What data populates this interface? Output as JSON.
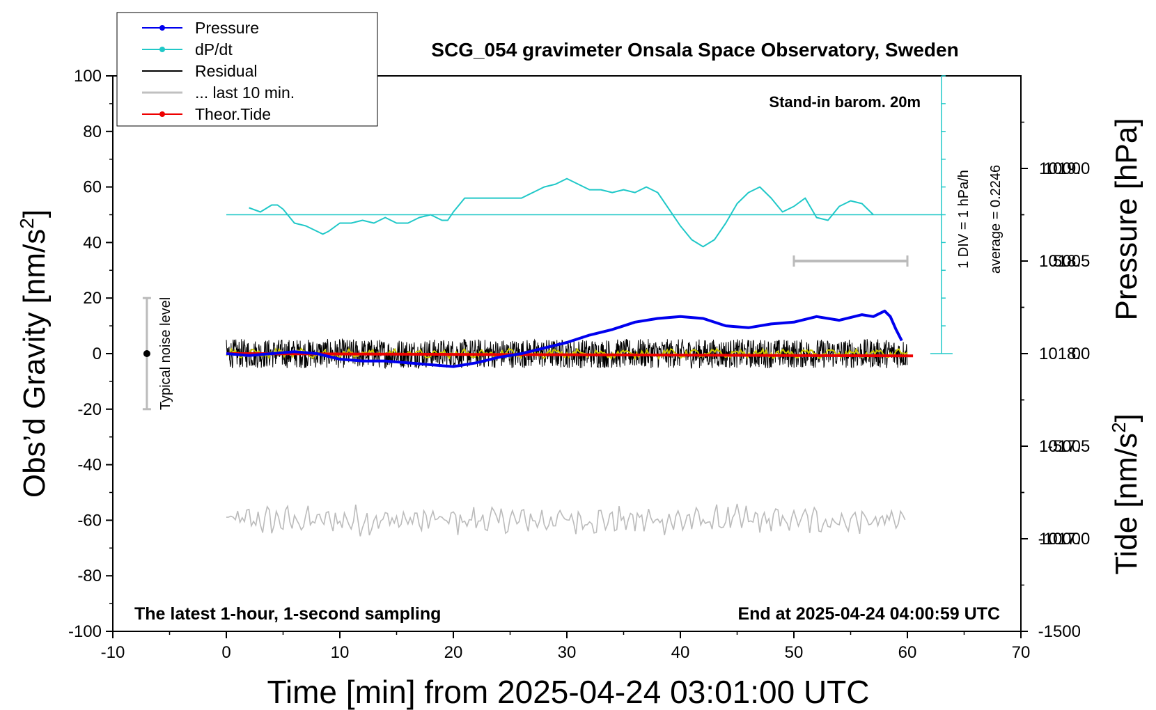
{
  "chart_data": {
    "type": "line",
    "title": "SCG_054 gravimeter Onsala Space Observatory, Sweden",
    "xlabel": "Time [min] from 2025-04-24 03:01:00 UTC",
    "ylabel_left": "Obs’d Gravity [nm/s",
    "ylabel_left_sup": "2",
    "ylabel_left_close": "]",
    "ylabel_right_pressure": "Pressure [hPa]",
    "ylabel_right_tide": "Tide [nm/s",
    "ylabel_right_tide_sup": "2",
    "ylabel_right_tide_close": "]",
    "xlim": [
      -10,
      70
    ],
    "ylim": [
      -100,
      100
    ],
    "pressure_ylim": [
      1016.5,
      1019.5
    ],
    "tide_ylim": [
      -1500,
      1500
    ],
    "x_ticks": [
      "-10",
      "0",
      "10",
      "20",
      "30",
      "40",
      "50",
      "60",
      "70"
    ],
    "y_ticks": [
      "-100",
      "-80",
      "-60",
      "-40",
      "-20",
      "0",
      "20",
      "40",
      "60",
      "80",
      "100"
    ],
    "pressure_ticks": [
      "1017.0",
      "1017.5",
      "1018.0",
      "1018.5",
      "1019.0"
    ],
    "tide_ticks": [
      "-1500",
      "-1000",
      "-500",
      "0",
      "500",
      "1000"
    ],
    "legend": [
      {
        "label": "Pressure",
        "color": "#0000ee",
        "marker": true
      },
      {
        "label": "dP/dt",
        "color": "#20c8c8",
        "marker": true
      },
      {
        "label": "Residual",
        "color": "#000000",
        "marker": false
      },
      {
        "label": "... last 10 min.",
        "color": "#c0c0c0",
        "marker": false
      },
      {
        "label": "Theor.Tide",
        "color": "#ee0000",
        "marker": true
      }
    ],
    "annotations": {
      "barometer": "Stand-in barom. 20m",
      "div_label": "1 DIV = 1 hPa/h",
      "average_label": "average = 0.2246",
      "noise_label": "Typical noise level",
      "bottom_left": "The latest 1-hour, 1-second sampling",
      "bottom_right": "End at 2025-04-24 04:00:59 UTC"
    },
    "noise_bar": {
      "x": -7,
      "center": 0,
      "range": [
        -20,
        20
      ]
    },
    "last10_bar": {
      "x_range": [
        50,
        60
      ],
      "tide_value": 500
    },
    "dpdt_reference": {
      "x_range": [
        0,
        63
      ],
      "y": 50
    },
    "div_scale": {
      "x": 63,
      "y_range": [
        0,
        100
      ],
      "ticks": 10
    },
    "series": {
      "pressure": {
        "name": "Pressure",
        "color": "#0000ee",
        "x": [
          0,
          2,
          4,
          6,
          8,
          10,
          12,
          14,
          16,
          18,
          20,
          22,
          24,
          26,
          28,
          30,
          32,
          34,
          36,
          38,
          40,
          42,
          44,
          46,
          48,
          50,
          52,
          54,
          56,
          57,
          58,
          58.5,
          59,
          59.5
        ],
        "y": [
          1018.0,
          1017.99,
          1018.0,
          1018.01,
          1018.0,
          1017.97,
          1017.96,
          1017.96,
          1017.95,
          1017.94,
          1017.93,
          1017.95,
          1017.98,
          1018.0,
          1018.03,
          1018.06,
          1018.1,
          1018.13,
          1018.17,
          1018.19,
          1018.2,
          1018.19,
          1018.15,
          1018.14,
          1018.16,
          1018.17,
          1018.2,
          1018.18,
          1018.21,
          1018.2,
          1018.23,
          1018.2,
          1018.13,
          1018.07
        ]
      },
      "dpdt": {
        "name": "dP/dt",
        "color": "#20c8c8",
        "x": [
          2,
          3,
          4,
          4.5,
          5,
          6,
          7,
          8,
          8.5,
          9,
          10,
          11,
          12,
          13,
          14,
          15,
          16,
          17,
          18,
          19,
          19.5,
          20,
          21,
          22,
          24,
          26,
          27,
          28,
          29,
          30,
          31,
          32,
          33,
          34,
          35,
          36,
          37,
          38,
          39,
          40,
          41,
          42,
          43,
          44,
          45,
          46,
          47,
          48,
          49,
          50,
          51,
          52,
          53,
          54,
          55,
          56,
          57
        ],
        "y": [
          52.5,
          51,
          53.5,
          53.5,
          52,
          47,
          46,
          44,
          43,
          44,
          47,
          47,
          48,
          47,
          49,
          47,
          47,
          49,
          50,
          48,
          48,
          51,
          56,
          56,
          56,
          56,
          58,
          60,
          61,
          63,
          61,
          59,
          59,
          58,
          59,
          58,
          60,
          58,
          52,
          46,
          41,
          38.5,
          41,
          47,
          54,
          58,
          60,
          56,
          51,
          53,
          56,
          49,
          48,
          53,
          55,
          54,
          50
        ]
      },
      "residual": {
        "name": "Residual",
        "color": "#000000",
        "x_range": [
          0,
          60
        ],
        "amplitude": 7
      },
      "residual_smooth": {
        "name": "Residual smoothed",
        "color": "#c8c800",
        "x_range": [
          0,
          60
        ],
        "amplitude": 2
      },
      "last10": {
        "name": "... last 10 min.",
        "color": "#c0c0c0",
        "x_range": [
          0,
          60
        ],
        "center": -60,
        "amplitude": 5
      },
      "tide": {
        "name": "Theor.Tide",
        "color": "#ee0000",
        "x": [
          0,
          10,
          20,
          30,
          40,
          50,
          60.5
        ],
        "y": [
          0,
          -2,
          -4,
          -6,
          -8,
          -10,
          -12
        ]
      }
    }
  }
}
